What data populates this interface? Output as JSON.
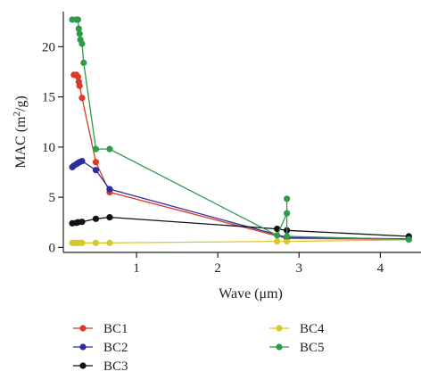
{
  "chart_data": {
    "type": "line",
    "xlabel": "Wave (μm)",
    "ylabel_main": "MAC (m",
    "ylabel_sup": "2",
    "ylabel_tail": "/g)",
    "xlim": [
      0.1,
      4.5
    ],
    "ylim": [
      -0.5,
      23.5
    ],
    "xticks": [
      1,
      2,
      3,
      4
    ],
    "yticks": [
      0,
      5,
      10,
      15,
      20
    ],
    "grid": false,
    "legend_position": "below",
    "series": [
      {
        "name": "BC1",
        "color": "#d93a2a",
        "points": [
          [
            0.23,
            17.2
          ],
          [
            0.26,
            17.2
          ],
          [
            0.28,
            17.0
          ],
          [
            0.29,
            16.5
          ],
          [
            0.3,
            16.1
          ],
          [
            0.33,
            14.9
          ],
          [
            0.5,
            8.5
          ],
          [
            0.67,
            5.5
          ],
          [
            2.85,
            0.9
          ],
          [
            4.35,
            0.8
          ]
        ]
      },
      {
        "name": "BC2",
        "color": "#2d2c9a",
        "points": [
          [
            0.21,
            8.0
          ],
          [
            0.23,
            8.15
          ],
          [
            0.26,
            8.3
          ],
          [
            0.28,
            8.4
          ],
          [
            0.3,
            8.5
          ],
          [
            0.33,
            8.6
          ],
          [
            0.5,
            7.7
          ],
          [
            0.67,
            5.8
          ],
          [
            2.85,
            1.0
          ],
          [
            4.35,
            0.85
          ]
        ]
      },
      {
        "name": "BC3",
        "color": "#111111",
        "points": [
          [
            0.21,
            2.4
          ],
          [
            0.26,
            2.45
          ],
          [
            0.28,
            2.5
          ],
          [
            0.33,
            2.55
          ],
          [
            0.5,
            2.85
          ],
          [
            0.67,
            3.0
          ],
          [
            2.73,
            1.85
          ],
          [
            2.85,
            1.7
          ],
          [
            4.35,
            1.1
          ]
        ]
      },
      {
        "name": "BC4",
        "color": "#d9c72a",
        "points": [
          [
            0.21,
            0.45
          ],
          [
            0.23,
            0.45
          ],
          [
            0.26,
            0.45
          ],
          [
            0.28,
            0.45
          ],
          [
            0.3,
            0.45
          ],
          [
            0.33,
            0.45
          ],
          [
            0.5,
            0.45
          ],
          [
            0.67,
            0.45
          ],
          [
            2.73,
            0.6
          ],
          [
            2.85,
            0.6
          ],
          [
            4.35,
            0.75
          ]
        ]
      },
      {
        "name": "BC5",
        "color": "#2e9a4a",
        "points": [
          [
            0.21,
            22.7
          ],
          [
            0.26,
            22.7
          ],
          [
            0.28,
            22.7
          ],
          [
            0.29,
            21.8
          ],
          [
            0.3,
            21.3
          ],
          [
            0.31,
            20.7
          ],
          [
            0.33,
            20.3
          ],
          [
            0.35,
            18.4
          ],
          [
            0.5,
            9.8
          ],
          [
            0.67,
            9.8
          ],
          [
            2.73,
            1.2
          ],
          [
            2.85,
            3.4
          ],
          [
            2.85,
            4.85
          ],
          [
            2.85,
            1.1
          ],
          [
            4.35,
            0.8
          ]
        ]
      }
    ]
  }
}
